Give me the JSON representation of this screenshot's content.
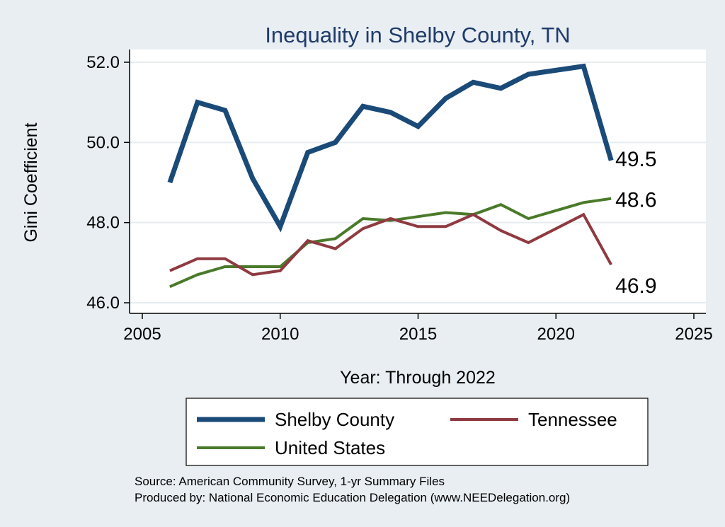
{
  "chart_data": {
    "type": "line",
    "title": "Inequality in Shelby County, TN",
    "xlabel": "Year: Through 2022",
    "ylabel": "Gini Coefficient",
    "xlim": [
      2005,
      2025
    ],
    "ylim": [
      46.0,
      52.0
    ],
    "x_ticks": [
      {
        "value": 2005,
        "label": "2005"
      },
      {
        "value": 2010,
        "label": "2010"
      },
      {
        "value": 2015,
        "label": "2015"
      },
      {
        "value": 2020,
        "label": "2020"
      },
      {
        "value": 2025,
        "label": "2025"
      }
    ],
    "y_ticks": [
      {
        "value": 46,
        "label": "46.0"
      },
      {
        "value": 48,
        "label": "48.0"
      },
      {
        "value": 50,
        "label": "50.0"
      },
      {
        "value": 52,
        "label": "52.0"
      }
    ],
    "grid": true,
    "x": [
      2006,
      2007,
      2008,
      2009,
      2010,
      2011,
      2012,
      2013,
      2014,
      2015,
      2016,
      2017,
      2018,
      2019,
      2020,
      2021,
      2022
    ],
    "series": [
      {
        "name": "Shelby County",
        "color": "#1a4a78",
        "values": [
          49.0,
          51.0,
          50.8,
          49.1,
          47.9,
          49.75,
          50.0,
          50.9,
          50.75,
          50.4,
          51.1,
          51.5,
          51.35,
          51.7,
          51.8,
          51.9,
          49.55
        ],
        "end_label": "49.5"
      },
      {
        "name": "Tennessee",
        "color": "#8e3a40",
        "values": [
          46.8,
          47.1,
          47.1,
          46.7,
          46.8,
          47.55,
          47.35,
          47.85,
          48.1,
          47.9,
          47.9,
          48.2,
          47.8,
          47.5,
          47.85,
          48.2,
          46.95
        ],
        "end_label": "46.9"
      },
      {
        "name": "United States",
        "color": "#4a7a2a",
        "values": [
          46.4,
          46.7,
          46.9,
          46.9,
          46.9,
          47.5,
          47.6,
          48.1,
          48.05,
          48.15,
          48.25,
          48.2,
          48.45,
          48.1,
          48.3,
          48.5,
          48.6
        ],
        "end_label": "48.6"
      }
    ],
    "legend_position": "bottom"
  },
  "source_lines": [
    "Source: American Community Survey, 1-yr Summary Files",
    "Produced by: National Economic Education Delegation (www.NEEDelegation.org)"
  ]
}
